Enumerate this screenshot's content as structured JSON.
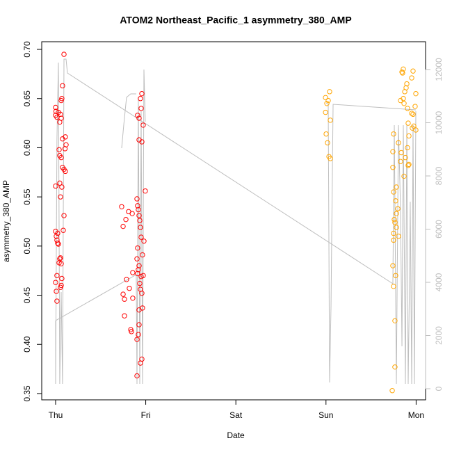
{
  "chart_data": {
    "type": "scatter",
    "title": "ATOM2 Northeast_Pacific_1 asymmetry_380_AMP",
    "xlabel": "Date",
    "ylabel": "asymmetry_380_AMP",
    "xlim": [
      -0.154,
      4.105
    ],
    "xticks": [
      {
        "value": 0,
        "label": "Thu"
      },
      {
        "value": 1,
        "label": "Fri"
      },
      {
        "value": 2,
        "label": "Sat"
      },
      {
        "value": 3,
        "label": "Sun"
      },
      {
        "value": 4,
        "label": "Mon"
      }
    ],
    "ylim": [
      0.3436,
      0.7078
    ],
    "yticks": [
      0.35,
      {
        "value": 0.4,
        "label": "0.40"
      },
      0.45,
      {
        "value": 0.5,
        "label": "0.50"
      },
      0.55,
      {
        "value": 0.6,
        "label": "0.60"
      },
      0.65,
      {
        "value": 0.7,
        "label": "0.70"
      }
    ],
    "y2lim": [
      -418,
      13046
    ],
    "y2ticks": [
      0,
      2000,
      4000,
      6000,
      8000,
      10000,
      12000
    ],
    "y2color": "#bebebe",
    "series": [
      {
        "type": "line",
        "axis": "y2",
        "color": "#bebebe",
        "x": [
          0,
          0,
          0.015,
          0.031,
          0.046,
          0.062,
          0.077,
          0.093,
          0.116,
          0.131,
          3.742,
          3.758,
          3.781,
          3.804,
          3.827,
          3.843,
          3.858,
          3.881,
          3.897,
          3.912,
          3.927,
          3.935,
          3.951,
          3.966,
          3.981,
          3.997,
          null,
          0,
          0.895,
          0.903,
          0.918,
          0.934,
          0.949,
          0.965,
          0.98,
          0.995,
          null,
          0.733,
          0.756,
          0.787,
          0.833,
          0.895,
          null,
          3.002,
          3.025,
          3.04,
          3.056,
          3.063,
          3.079,
          3.997
        ],
        "values": [
          2562,
          183,
          9386,
          12262,
          183,
          3634,
          183,
          12392,
          12392,
          11869,
          3948,
          9909,
          183,
          9909,
          6771,
          1595,
          9909,
          183,
          9909,
          183,
          4157,
          7033,
          183,
          9909,
          183,
          10431,
          null,
          2562,
          4288,
          183,
          10954,
          183,
          10431,
          183,
          12000,
          10039,
          null,
          9046,
          9909,
          10954,
          11085,
          11085,
          null,
          10745,
          10693,
          235,
          3111,
          5595,
          10693,
          10484
        ]
      },
      {
        "type": "scatter",
        "color": "#ff0000",
        "x": [
          0,
          0.004,
          0,
          0.015,
          0.031,
          0.054,
          0.062,
          0.046,
          0.108,
          0.077,
          0.116,
          0.104,
          0.039,
          0.046,
          0.062,
          0.077,
          0.093,
          0.108,
          0.046,
          0,
          0.069,
          0.054,
          0.093,
          0.085,
          0,
          0.023,
          0.008,
          0.015,
          0.023,
          0.031,
          0.054,
          0.046,
          0.039,
          0.062,
          0.015,
          0.069,
          0,
          0.062,
          0.054,
          0.008,
          0.015,
          0.093,
          0.077,
          0.069,
          0.062,
          0.733,
          0.81,
          0.78,
          0.749,
          0.85,
          0.749,
          0.764,
          0.764,
          0.834,
          0.841,
          0.818,
          0.787,
          0.856,
          0.856,
          0.903,
          0.91,
          0.918,
          0.926,
          0.934,
          0.941,
          0.949,
          0.91,
          0.903,
          0.926,
          0.918,
          0.91,
          0.972,
          0.934,
          0.941,
          0.957,
          0.926,
          0.964,
          0.926,
          0.918,
          0.903,
          0.957,
          0.941,
          0.903,
          0.957,
          0.941,
          0.949,
          0.91,
          0.926,
          0.972,
          0.926,
          0.957,
          0.995,
          0.98,
          0.964,
          0.949
        ],
        "values": [
          0.641,
          0.637,
          0.633,
          0.631,
          0.636,
          0.634,
          0.63,
          0.626,
          0.611,
          0.609,
          0.603,
          0.599,
          0.598,
          0.592,
          0.59,
          0.58,
          0.578,
          0.576,
          0.564,
          0.561,
          0.56,
          0.55,
          0.531,
          0.516,
          0.515,
          0.513,
          0.51,
          0.506,
          0.503,
          0.502,
          0.488,
          0.487,
          0.483,
          0.482,
          0.47,
          0.467,
          0.463,
          0.46,
          0.458,
          0.454,
          0.444,
          0.695,
          0.663,
          0.65,
          0.648,
          0.54,
          0.535,
          0.527,
          0.52,
          0.533,
          0.451,
          0.446,
          0.429,
          0.415,
          0.413,
          0.457,
          0.466,
          0.473,
          0.447,
          0.548,
          0.541,
          0.537,
          0.531,
          0.526,
          0.519,
          0.509,
          0.498,
          0.487,
          0.48,
          0.476,
          0.472,
          0.47,
          0.462,
          0.456,
          0.452,
          0.435,
          0.437,
          0.42,
          0.41,
          0.405,
          0.385,
          0.381,
          0.368,
          0.655,
          0.65,
          0.64,
          0.633,
          0.63,
          0.623,
          0.608,
          0.606,
          0.556,
          0.505,
          0.491,
          0.469
        ]
      },
      {
        "type": "scatter",
        "color": "#ffa500",
        "x": [
          3.04,
          2.995,
          3.025,
          3.01,
          2.995,
          3.048,
          3.002,
          3.017,
          3.033,
          3.048,
          3.75,
          3.742,
          3.742,
          3.75,
          3.773,
          3.758,
          3.765,
          3.781,
          3.75,
          3.75,
          3.742,
          3.773,
          3.75,
          3.765,
          3.765,
          3.735,
          3.843,
          3.85,
          3.858,
          3.966,
          3.951,
          3.897,
          3.889,
          3.874,
          3.997,
          3.858,
          3.827,
          3.866,
          3.989,
          3.905,
          3.951,
          3.966,
          3.912,
          3.974,
          3.958,
          3.997,
          3.92,
          3.804,
          3.904,
          3.835,
          3.881,
          3.827,
          3.92,
          3.912,
          3.866,
          3.781,
          3.797,
          3.781,
          3.804
        ],
        "values": [
          0.657,
          0.651,
          0.648,
          0.645,
          0.636,
          0.628,
          0.614,
          0.605,
          0.591,
          0.589,
          0.614,
          0.596,
          0.58,
          0.555,
          0.546,
          0.527,
          0.524,
          0.519,
          0.513,
          0.506,
          0.48,
          0.47,
          0.459,
          0.424,
          0.377,
          0.353,
          0.677,
          0.676,
          0.68,
          0.678,
          0.671,
          0.665,
          0.661,
          0.657,
          0.655,
          0.65,
          0.648,
          0.645,
          0.642,
          0.64,
          0.635,
          0.634,
          0.625,
          0.622,
          0.62,
          0.618,
          0.612,
          0.605,
          0.6,
          0.595,
          0.59,
          0.586,
          0.583,
          0.582,
          0.571,
          0.56,
          0.538,
          0.533,
          0.51
        ]
      }
    ]
  }
}
